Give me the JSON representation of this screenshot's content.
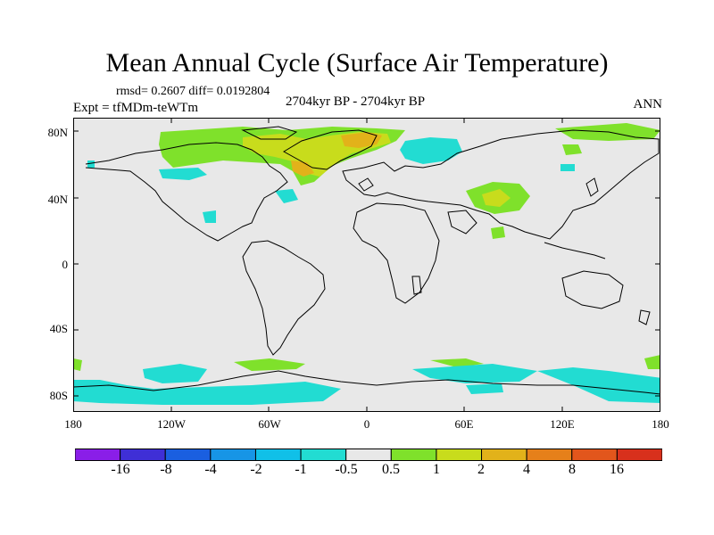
{
  "title": "Mean Annual Cycle (Surface Air Temperature)",
  "stats": "rmsd= 0.2607 diff= 0.0192804",
  "experiment": "Expt = tfMDm-teWTm",
  "period": "2704kyr BP - 2704kyr BP",
  "season": "ANN",
  "lat_labels": [
    "80N",
    "40N",
    "0",
    "40S",
    "80S"
  ],
  "lon_labels": [
    "180",
    "120W",
    "60W",
    "0",
    "60E",
    "120E",
    "180"
  ],
  "colorbar": {
    "labels": [
      "-16",
      "-8",
      "-4",
      "-2",
      "-1",
      "-0.5",
      "0.5",
      "1",
      "2",
      "4",
      "8",
      "16"
    ],
    "colors": [
      "#8a1ee8",
      "#3f2fd6",
      "#1a5fe0",
      "#1795e6",
      "#10c0e8",
      "#22dcd2",
      "#e8e8e8",
      "#7fe12b",
      "#c8dc1c",
      "#e2b21a",
      "#e6801a",
      "#e2561c",
      "#d8301c"
    ]
  },
  "colors": {
    "background": "#e8e8e8",
    "cool": "#22dcd2",
    "warm1": "#7fe12b",
    "warm2": "#c8dc1c",
    "warm3": "#e2b21a"
  }
}
